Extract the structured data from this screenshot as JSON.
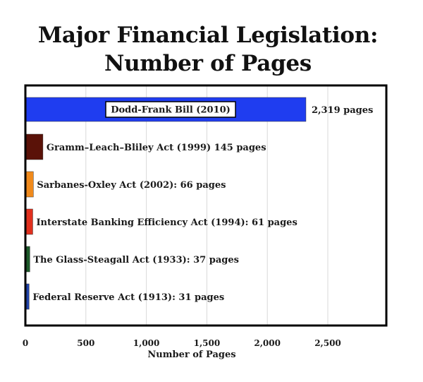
{
  "chart_data": {
    "type": "bar",
    "orientation": "horizontal",
    "title_lines": [
      "Major Financial Legislation:",
      "Number of Pages"
    ],
    "xlabel": "Number of Pages",
    "ylabel": "",
    "xlim": [
      0,
      3000
    ],
    "xticks": [
      0,
      500,
      1000,
      1500,
      2000,
      2500
    ],
    "xtick_labels": [
      "0",
      "500",
      "1,000",
      "1,500",
      "2,000",
      "2,500"
    ],
    "grid": "vertical",
    "legend": "none",
    "bars": [
      {
        "label": "Dodd-Frank Bill (2010)",
        "value": 2319,
        "value_label": "2,319 pages",
        "color": "#1f3df0",
        "boxed_label": true
      },
      {
        "label": "Gramm–Leach–Bliley Act (1999) 145 pages",
        "value": 145,
        "color": "#5a1208"
      },
      {
        "label": "Sarbanes-Oxley Act (2002): 66 pages",
        "value": 66,
        "color": "#f08a1c"
      },
      {
        "label": "Interstate Banking Efficiency Act (1994): 61 pages",
        "value": 61,
        "color": "#e0301e"
      },
      {
        "label": "The Glass-Steagall Act (1933): 37 pages",
        "value": 37,
        "color": "#1d5a2a"
      },
      {
        "label": "Federal Reserve Act (1913): 31 pages",
        "value": 31,
        "color": "#2244aa"
      }
    ]
  }
}
